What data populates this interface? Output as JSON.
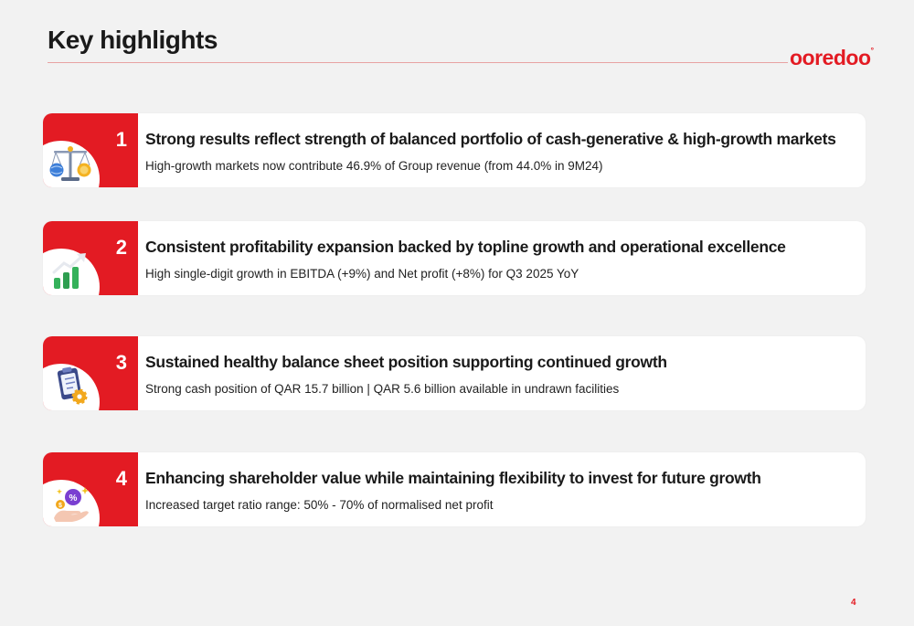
{
  "page": {
    "title": "Key highlights",
    "logo": "ooredoo",
    "logo_mark": "°",
    "number": "4",
    "accent_color": "#e31b23"
  },
  "highlights": [
    {
      "number": "1",
      "icon": "balance-scale-icon",
      "heading": "Strong results reflect strength of balanced portfolio of cash-generative & high-growth markets",
      "text": "High-growth markets now contribute 46.9% of Group revenue (from 44.0% in 9M24)"
    },
    {
      "number": "2",
      "icon": "growth-chart-icon",
      "heading": "Consistent profitability expansion backed by topline growth and operational excellence",
      "text": "High single-digit growth in EBITDA (+9%) and Net profit (+8%) for Q3 2025 YoY"
    },
    {
      "number": "3",
      "icon": "clipboard-gear-icon",
      "heading": "Sustained healthy balance sheet position supporting continued growth",
      "text": "Strong cash position of QAR 15.7 billion | QAR 5.6 billion available in undrawn facilities"
    },
    {
      "number": "4",
      "icon": "hand-coins-icon",
      "heading": "Enhancing shareholder value while maintaining flexibility to invest for future growth",
      "text": "Increased target ratio range: 50% - 70% of normalised net profit"
    }
  ]
}
